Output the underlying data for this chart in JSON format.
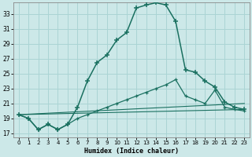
{
  "xlabel": "Humidex (Indice chaleur)",
  "bg_color": "#cce8e8",
  "grid_color": "#aad4d4",
  "line_color": "#1a7060",
  "xlim": [
    -0.5,
    23.5
  ],
  "ylim": [
    16.5,
    34.5
  ],
  "yticks": [
    17,
    19,
    21,
    23,
    25,
    27,
    29,
    31,
    33
  ],
  "xticks": [
    0,
    1,
    2,
    3,
    4,
    5,
    6,
    7,
    8,
    9,
    10,
    11,
    12,
    13,
    14,
    15,
    16,
    17,
    18,
    19,
    20,
    21,
    22,
    23
  ],
  "series1_x": [
    0,
    1,
    2,
    3,
    4,
    5,
    6,
    7,
    8,
    9,
    10,
    11,
    12,
    13,
    14,
    15,
    16,
    17,
    18,
    19,
    20,
    21,
    22,
    23
  ],
  "series1_y": [
    19.5,
    19.0,
    17.5,
    18.2,
    17.5,
    18.2,
    20.5,
    24.0,
    26.5,
    27.5,
    29.5,
    30.5,
    33.8,
    34.2,
    34.5,
    34.2,
    32.0,
    25.5,
    25.2,
    24.0,
    23.2,
    21.2,
    20.5,
    20.2
  ],
  "series2_x": [
    0,
    1,
    2,
    3,
    4,
    5,
    6,
    7,
    8,
    9,
    10,
    11,
    12,
    13,
    14,
    15,
    16,
    17,
    18,
    19,
    20,
    21,
    22,
    23
  ],
  "series2_y": [
    19.5,
    19.0,
    17.5,
    18.2,
    17.5,
    18.2,
    19.0,
    19.5,
    20.0,
    20.5,
    21.0,
    21.5,
    22.0,
    22.5,
    23.0,
    23.5,
    24.2,
    22.0,
    21.5,
    21.0,
    22.8,
    20.5,
    20.2,
    20.0
  ],
  "series3_x": [
    0,
    23
  ],
  "series3_y": [
    19.5,
    21.0
  ],
  "series4_x": [
    0,
    23
  ],
  "series4_y": [
    19.5,
    20.2
  ]
}
